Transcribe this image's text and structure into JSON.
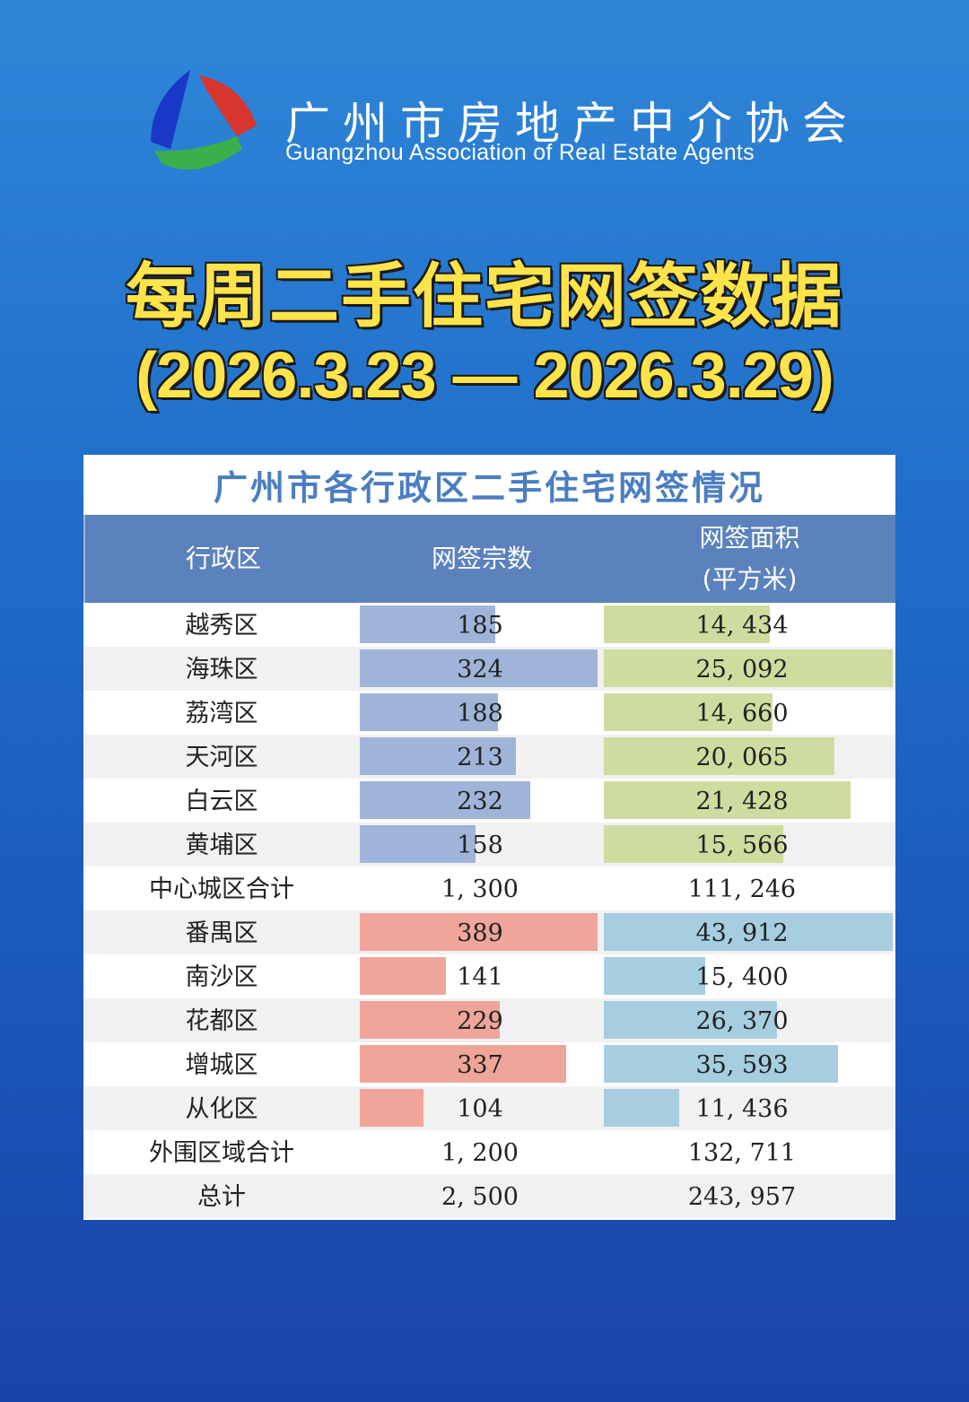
{
  "header": {
    "org_name_cn": "广州市房地产中介协会",
    "org_name_en": "Guangzhou Association of Real Estate Agents",
    "title": "每周二手住宅网签数据",
    "date_range": "(2026.3.23 — 2026.3.29)"
  },
  "table": {
    "title": "广州市各行政区二手住宅网签情况",
    "col_district": "行政区",
    "col_count": "网签宗数",
    "col_area_line1": "网签面积",
    "col_area_line2": "(平方米)"
  },
  "colors": {
    "core_count_bar": "#9fb4d8",
    "core_area_bar": "#cfdca0",
    "outer_count_bar": "#f0a59a",
    "outer_area_bar": "#a6cde0",
    "header_bg": "#5b82bd"
  },
  "chart_data": {
    "type": "table",
    "title": "广州市各行政区二手住宅网签情况",
    "columns": [
      "行政区",
      "网签宗数",
      "网签面积(平方米)"
    ],
    "rows": [
      {
        "district": "越秀区",
        "count": 185,
        "count_label": "185",
        "area": 14434,
        "area_label": "14, 434",
        "group": "core",
        "alt": false
      },
      {
        "district": "海珠区",
        "count": 324,
        "count_label": "324",
        "area": 25092,
        "area_label": "25, 092",
        "group": "core",
        "alt": true
      },
      {
        "district": "荔湾区",
        "count": 188,
        "count_label": "188",
        "area": 14660,
        "area_label": "14, 660",
        "group": "core",
        "alt": false
      },
      {
        "district": "天河区",
        "count": 213,
        "count_label": "213",
        "area": 20065,
        "area_label": "20, 065",
        "group": "core",
        "alt": true
      },
      {
        "district": "白云区",
        "count": 232,
        "count_label": "232",
        "area": 21428,
        "area_label": "21, 428",
        "group": "core",
        "alt": false
      },
      {
        "district": "黄埔区",
        "count": 158,
        "count_label": "158",
        "area": 15566,
        "area_label": "15, 566",
        "group": "core",
        "alt": true
      },
      {
        "district": "中心城区合计",
        "count": 1300,
        "count_label": "1, 300",
        "area": 111246,
        "area_label": "111, 246",
        "group": "core-total",
        "alt": false
      },
      {
        "district": "番禺区",
        "count": 389,
        "count_label": "389",
        "area": 43912,
        "area_label": "43, 912",
        "group": "outer",
        "alt": true
      },
      {
        "district": "南沙区",
        "count": 141,
        "count_label": "141",
        "area": 15400,
        "area_label": "15, 400",
        "group": "outer",
        "alt": false
      },
      {
        "district": "花都区",
        "count": 229,
        "count_label": "229",
        "area": 26370,
        "area_label": "26, 370",
        "group": "outer",
        "alt": true
      },
      {
        "district": "增城区",
        "count": 337,
        "count_label": "337",
        "area": 35593,
        "area_label": "35, 593",
        "group": "outer",
        "alt": false
      },
      {
        "district": "从化区",
        "count": 104,
        "count_label": "104",
        "area": 11436,
        "area_label": "11, 436",
        "group": "outer",
        "alt": true
      },
      {
        "district": "外围区域合计",
        "count": 1200,
        "count_label": "1, 200",
        "area": 132711,
        "area_label": "132, 711",
        "group": "outer-total",
        "alt": false
      },
      {
        "district": "总计",
        "count": 2500,
        "count_label": "2, 500",
        "area": 243957,
        "area_label": "243, 957",
        "group": "grand-total",
        "alt": true
      }
    ]
  }
}
